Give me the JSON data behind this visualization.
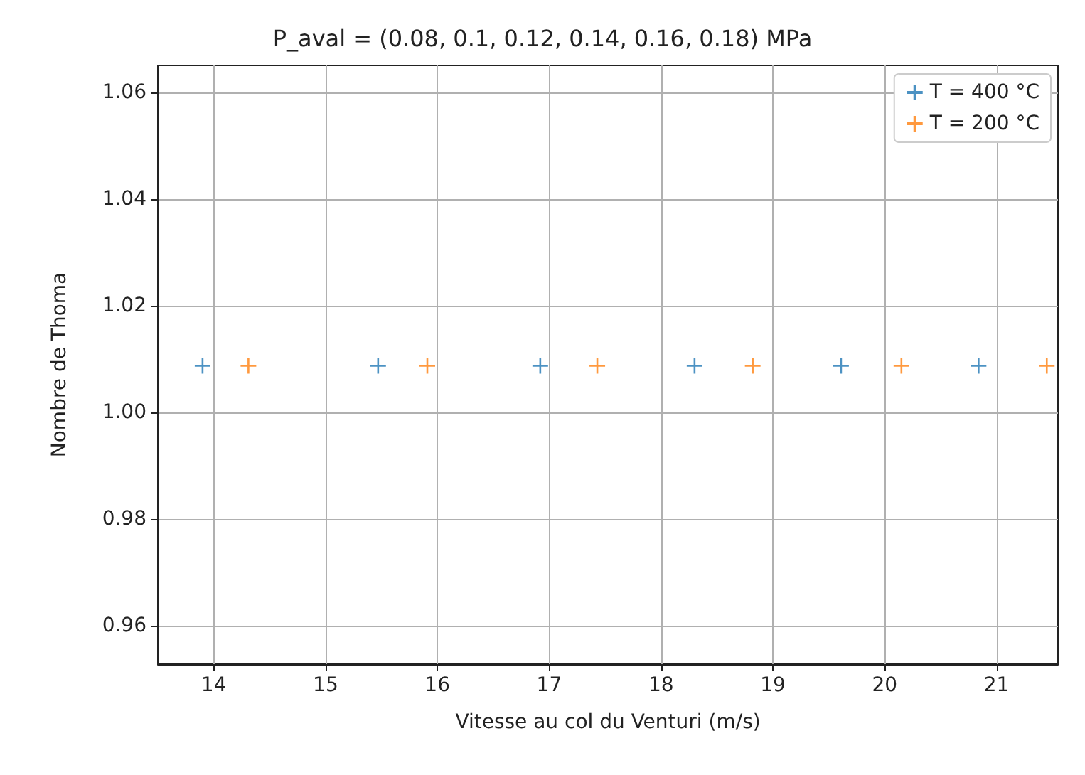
{
  "chart_data": {
    "type": "scatter",
    "title": "P_aval = (0.08, 0.1, 0.12, 0.14, 0.16, 0.18) MPa",
    "xlabel": "Vitesse au col du Venturi (m/s)",
    "ylabel": "Nombre de Thoma",
    "series": [
      {
        "name": "T = 400 °C",
        "color": "#1f77b4",
        "x": [
          13.9,
          15.47,
          16.92,
          18.3,
          19.61,
          20.84
        ],
        "values": [
          1.0087,
          1.0087,
          1.0087,
          1.0087,
          1.0087,
          1.0087
        ]
      },
      {
        "name": "T = 200 °C",
        "color": "#ff7f0e",
        "x": [
          14.31,
          15.91,
          17.43,
          18.82,
          20.15,
          21.45
        ],
        "values": [
          1.0087,
          1.0087,
          1.0087,
          1.0087,
          1.0087,
          1.0087
        ]
      }
    ],
    "xlim": [
      13.5,
      21.55
    ],
    "ylim": [
      0.9528,
      1.065
    ],
    "xticks": [
      14,
      15,
      16,
      17,
      18,
      19,
      20,
      21
    ],
    "yticks": [
      {
        "value": 0.96,
        "label": "0.96"
      },
      {
        "value": 0.98,
        "label": "0.98"
      },
      {
        "value": 1,
        "label": "1.00"
      },
      {
        "value": 1.02,
        "label": "1.02"
      },
      {
        "value": 1.04,
        "label": "1.04"
      },
      {
        "value": 1.06,
        "label": "1.06"
      }
    ],
    "grid": true,
    "legend": "top right",
    "marker": "cross"
  }
}
